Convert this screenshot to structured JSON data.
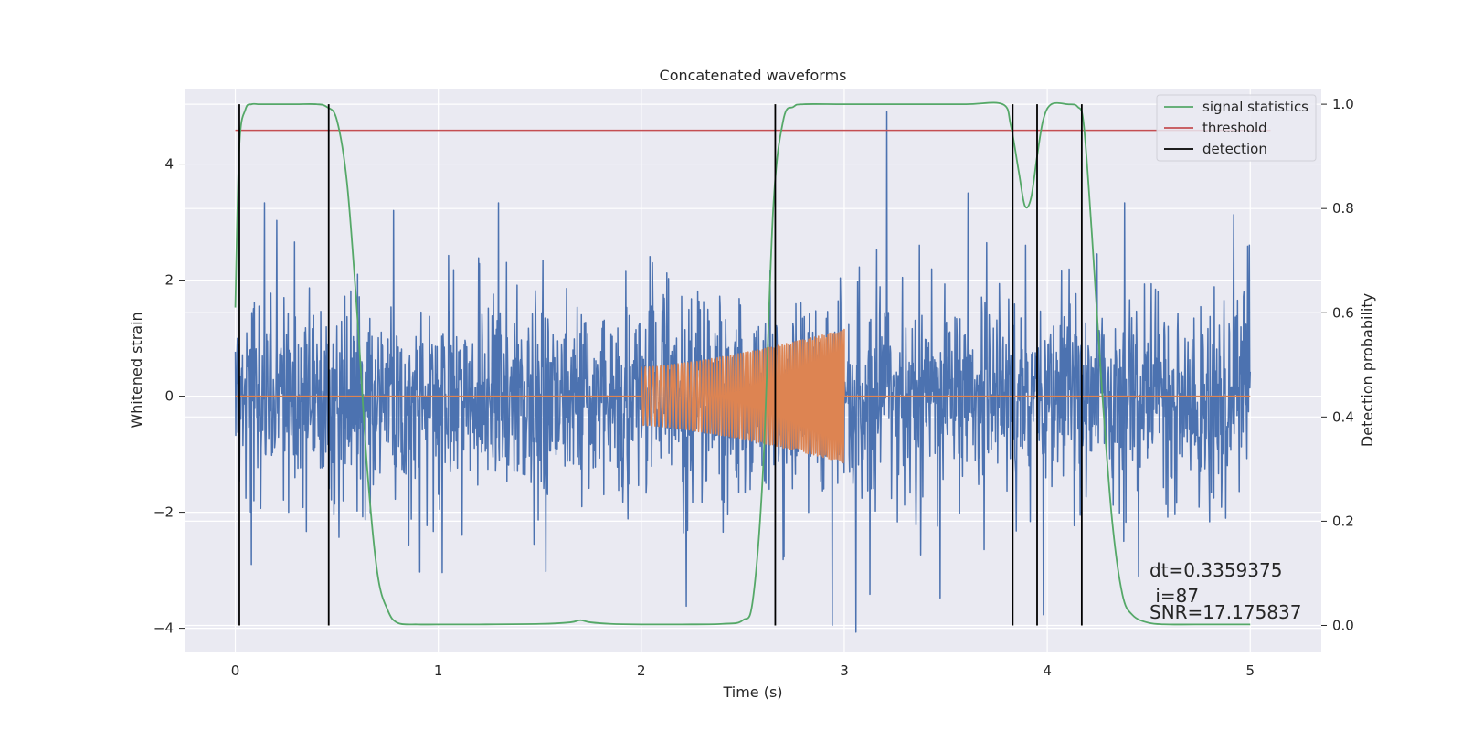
{
  "chart_data": {
    "type": "line",
    "title": "Concatenated waveforms",
    "xlabel": "Time (s)",
    "ylabel": "Whitened strain",
    "y2label": "Detection probability",
    "xlim": [
      -0.25,
      5.35
    ],
    "ylim": [
      -4.4,
      5.3
    ],
    "y2lim": [
      -0.05,
      1.03
    ],
    "xticks": [
      0,
      1,
      2,
      3,
      4,
      5
    ],
    "yticks": [
      -4,
      -2,
      0,
      2,
      4
    ],
    "y2ticks": [
      0.0,
      0.2,
      0.4,
      0.6,
      0.8,
      1.0
    ],
    "xtick_labels": [
      "0",
      "1",
      "2",
      "3",
      "4",
      "5"
    ],
    "ytick_labels": [
      "−4",
      "−2",
      "0",
      "2",
      "4"
    ],
    "y2tick_labels": [
      "0.0",
      "0.2",
      "0.4",
      "0.6",
      "0.8",
      "1.0"
    ],
    "grid": true,
    "legend_position": "top-right",
    "colors": {
      "strain": "#4c72b0",
      "signal": "#dd8452",
      "statistics": "#55a868",
      "threshold": "#c44e52",
      "detection": "#000000",
      "axes_bg": "#eaeaf2",
      "grid": "#ffffff"
    },
    "legend": [
      {
        "label": "signal statistics",
        "color": "#55a868"
      },
      {
        "label": "threshold",
        "color": "#c44e52"
      },
      {
        "label": "detection",
        "color": "#000000"
      }
    ],
    "series": [
      {
        "axis": "left",
        "color": "#4c72b0",
        "x_range": [
          0,
          5
        ],
        "typical_amplitude": 1.1,
        "peak_amplitude": 4.9
      },
      {
        "axis": "left",
        "color": "#dd8452",
        "x_range": [
          0,
          5
        ],
        "chirp_start": 2.0,
        "chirp_end": 3.0,
        "amplitude_start": 0.5,
        "amplitude_end": 1.15
      },
      {
        "name": "signal statistics",
        "axis": "right",
        "color": "#55a868",
        "x": [
          0,
          0.02,
          0.05,
          0.08,
          0.12,
          0.2,
          0.3,
          0.4,
          0.45,
          0.5,
          0.55,
          0.6,
          0.65,
          0.7,
          0.75,
          0.8,
          0.9,
          1.0,
          1.2,
          1.5,
          1.65,
          1.7,
          1.75,
          1.85,
          2.0,
          2.2,
          2.4,
          2.5,
          2.55,
          2.6,
          2.65,
          2.7,
          2.75,
          2.8,
          3.0,
          3.3,
          3.6,
          3.78,
          3.82,
          3.86,
          3.89,
          3.92,
          3.95,
          3.98,
          4.02,
          4.1,
          4.15,
          4.18,
          4.22,
          4.27,
          4.32,
          4.37,
          4.42,
          4.5,
          4.6,
          4.8,
          5.0
        ],
        "y": [
          0.61,
          0.92,
          0.99,
          1.0,
          1.0,
          1.0,
          1.0,
          1.0,
          0.995,
          0.97,
          0.85,
          0.6,
          0.3,
          0.1,
          0.03,
          0.005,
          0.002,
          0.002,
          0.002,
          0.003,
          0.006,
          0.01,
          0.006,
          0.003,
          0.002,
          0.002,
          0.003,
          0.01,
          0.05,
          0.3,
          0.8,
          0.97,
          0.995,
          1.0,
          1.0,
          1.0,
          1.0,
          1.0,
          0.96,
          0.87,
          0.805,
          0.82,
          0.9,
          0.97,
          1.0,
          1.0,
          0.995,
          0.96,
          0.75,
          0.45,
          0.2,
          0.06,
          0.02,
          0.005,
          0.002,
          0.002,
          0.002
        ]
      },
      {
        "name": "threshold",
        "axis": "right",
        "color": "#c44e52",
        "x": [
          0,
          5.1
        ],
        "y": [
          0.95,
          0.95
        ]
      }
    ],
    "detections": [
      0.02,
      0.46,
      2.66,
      3.83,
      3.95,
      4.17
    ],
    "annotations": [
      "dt=0.3359375",
      " i=87",
      "SNR=17.175837"
    ]
  }
}
